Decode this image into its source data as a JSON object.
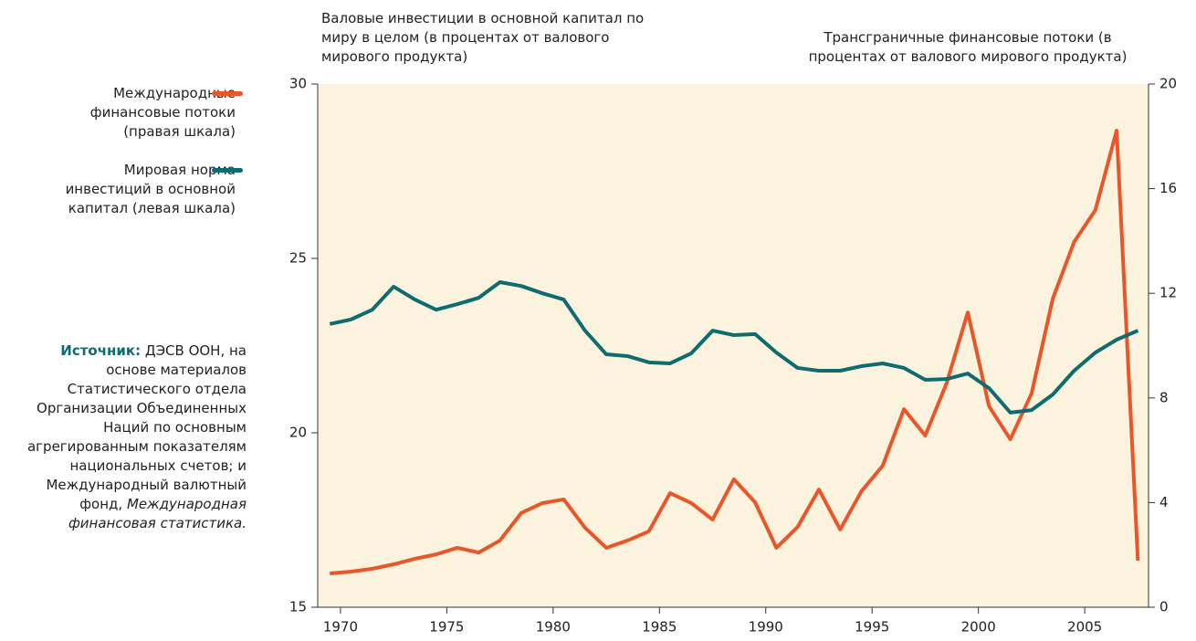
{
  "chart_data": {
    "type": "line",
    "ylabel": "Валовые инвестиции в основной капитал по миру в целом (в процентах от валового мирового продукта)",
    "y2label": "Трансграничные финансовые потоки (в процентах от валового мирового продукта)",
    "x": [
      1969.5,
      1970.5,
      1971.5,
      1972.5,
      1973.5,
      1974.5,
      1975.5,
      1976.5,
      1977.5,
      1978.5,
      1979.5,
      1980.5,
      1981.5,
      1982.5,
      1983.5,
      1984.5,
      1985.5,
      1986.5,
      1987.5,
      1988.5,
      1989.5,
      1990.5,
      1991.5,
      1992.5,
      1993.5,
      1994.5,
      1995.5,
      1996.5,
      1997.5,
      1998.5,
      1999.5,
      2000.5,
      2001.5,
      2002.5,
      2003.5,
      2004.5,
      2005.5,
      2006.5,
      2007.5
    ],
    "series": [
      {
        "name": "Международные\nфинансовые потоки\n(правая шкала)",
        "color": "#e8562a",
        "axis": "y2",
        "values": [
          1.29,
          1.36,
          1.47,
          1.64,
          1.85,
          2.02,
          2.27,
          2.09,
          2.55,
          3.6,
          3.98,
          4.12,
          3.04,
          2.27,
          2.55,
          2.9,
          4.36,
          3.98,
          3.35,
          4.89,
          4.01,
          2.27,
          3.07,
          4.5,
          2.97,
          4.43,
          5.41,
          7.57,
          6.56,
          8.55,
          11.27,
          7.68,
          6.42,
          8.17,
          11.8,
          13.96,
          15.18,
          18.22,
          1.78
        ]
      },
      {
        "name": "Мировая норма\nинвестиций в основной\nкапитал (левая шкала)",
        "color": "#0e6b6f",
        "values": [
          23.12,
          23.25,
          23.53,
          24.19,
          23.82,
          23.53,
          23.69,
          23.87,
          24.32,
          24.21,
          24.0,
          23.82,
          22.93,
          22.25,
          22.2,
          22.02,
          21.99,
          22.28,
          22.93,
          22.8,
          22.83,
          22.3,
          21.86,
          21.78,
          21.78,
          21.91,
          21.99,
          21.86,
          21.52,
          21.54,
          21.7,
          21.28,
          20.58,
          20.65,
          21.1,
          21.78,
          22.3,
          22.67,
          22.93
        ]
      }
    ],
    "xlim": [
      1968.93,
      2008.0
    ],
    "xticks": [
      1970,
      1975,
      1980,
      1985,
      1990,
      1995,
      2000,
      2005
    ],
    "ylim": [
      15,
      30
    ],
    "yticks": [
      15,
      20,
      25,
      30
    ],
    "y2lim": [
      0,
      20
    ],
    "y2ticks": [
      0,
      4,
      8,
      12,
      16,
      20
    ],
    "background": "#fbf3dd"
  },
  "source": {
    "label": "Источник:",
    "text": "ДЭСВ ООН, на основе материалов Статистического отдела Организации Объединенных Наций по основным агрегированным показателям национальных счетов; и Международный валютный фонд,",
    "italic": "Международная финансовая статистика."
  }
}
